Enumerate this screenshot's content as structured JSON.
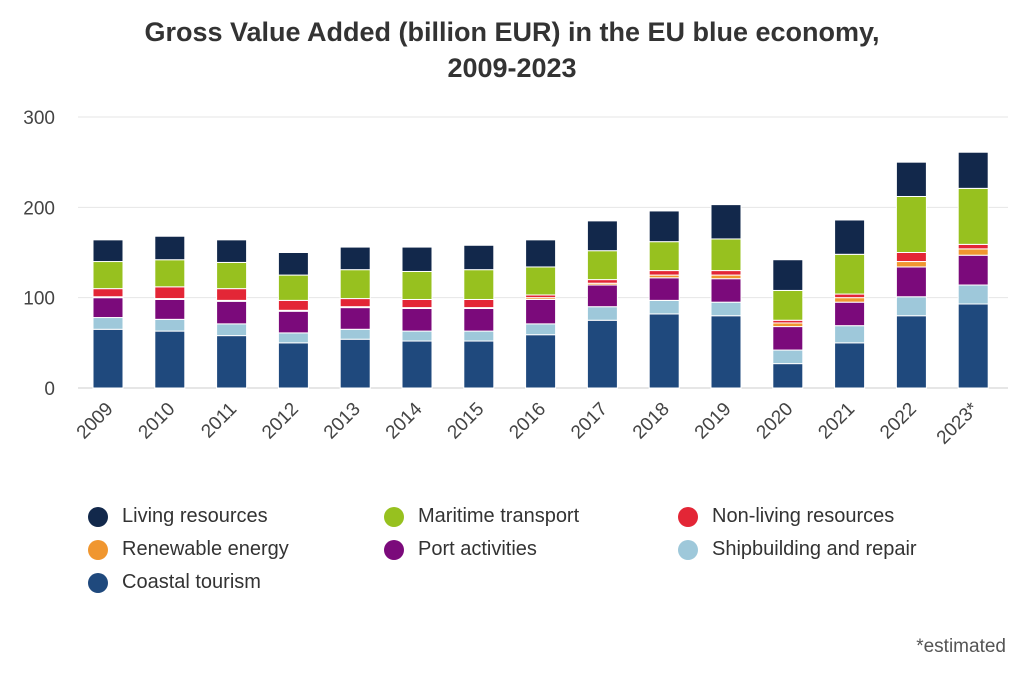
{
  "chart_data": {
    "type": "bar",
    "stacked": true,
    "title_lines": [
      "Gross Value Added (billion EUR) in the EU blue economy,",
      "2009-2023"
    ],
    "categories": [
      "2009",
      "2010",
      "2011",
      "2012",
      "2013",
      "2014",
      "2015",
      "2016",
      "2017",
      "2018",
      "2019",
      "2020",
      "2021",
      "2022",
      "2023*"
    ],
    "ylim": [
      0,
      300
    ],
    "yticks": [
      0,
      100,
      200,
      300
    ],
    "grid": true,
    "legend_position": "bottom",
    "series": [
      {
        "name": "Coastal tourism",
        "color": "#1f497d",
        "values": [
          65,
          63,
          58,
          50,
          54,
          52,
          52,
          59,
          75,
          82,
          80,
          27,
          50,
          80,
          93
        ]
      },
      {
        "name": "Shipbuilding and repair",
        "color": "#9ec8da",
        "values": [
          13,
          13,
          13,
          11,
          11,
          11,
          11,
          12,
          15,
          15,
          15,
          15,
          19,
          21,
          21
        ]
      },
      {
        "name": "Port activities",
        "color": "#7b0a7b",
        "values": [
          22,
          22,
          25,
          24,
          24,
          25,
          25,
          27,
          24,
          25,
          26,
          26,
          26,
          33,
          33
        ]
      },
      {
        "name": "Renewable energy",
        "color": "#f0962f",
        "values": [
          1,
          1,
          1,
          1,
          1,
          1,
          1,
          2,
          2,
          3,
          4,
          4,
          5,
          6,
          7
        ]
      },
      {
        "name": "Non-living resources",
        "color": "#e32636",
        "values": [
          9,
          13,
          13,
          11,
          9,
          9,
          9,
          3,
          4,
          5,
          5,
          3,
          4,
          10,
          5
        ]
      },
      {
        "name": "Maritime transport",
        "color": "#97c11f",
        "values": [
          30,
          30,
          29,
          28,
          32,
          31,
          33,
          31,
          32,
          32,
          35,
          33,
          44,
          62,
          62
        ]
      },
      {
        "name": "Living resources",
        "color": "#12284b",
        "values": [
          24,
          26,
          25,
          25,
          25,
          27,
          27,
          30,
          33,
          34,
          38,
          34,
          38,
          38,
          40
        ]
      }
    ]
  },
  "legend": {
    "items": [
      {
        "label": "Living resources",
        "color": "#12284b"
      },
      {
        "label": "Maritime transport",
        "color": "#97c11f"
      },
      {
        "label": "Non-living resources",
        "color": "#e32636"
      },
      {
        "label": "Renewable energy",
        "color": "#f0962f"
      },
      {
        "label": "Port activities",
        "color": "#7b0a7b"
      },
      {
        "label": "Shipbuilding and repair",
        "color": "#9ec8da"
      },
      {
        "label": "Coastal tourism",
        "color": "#1f497d"
      }
    ]
  },
  "footnote": "*estimated"
}
